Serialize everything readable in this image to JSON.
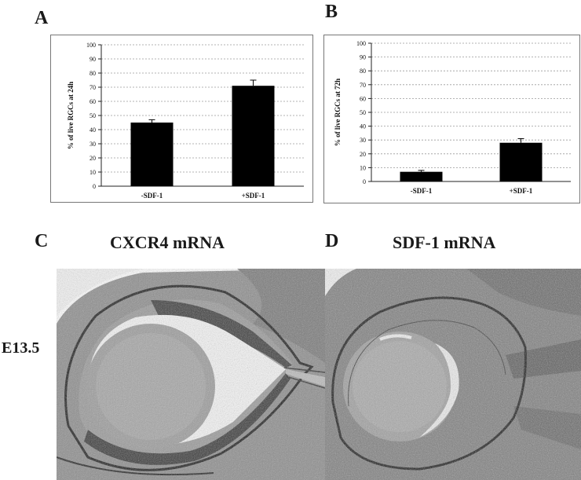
{
  "panels": {
    "a": "A",
    "b": "B",
    "c": "C",
    "d": "D"
  },
  "titles": {
    "c": "CXCR4 mRNA",
    "d": "SDF-1 mRNA"
  },
  "row_label": "E13.5",
  "chart_data": [
    {
      "type": "bar",
      "categories": [
        "-SDF-1",
        "+SDF-1"
      ],
      "values": [
        45,
        71
      ],
      "errors": [
        2,
        4
      ],
      "title": "",
      "xlabel": "",
      "ylabel": "% of live RGCs at 24h",
      "ylim": [
        0,
        100
      ],
      "yticks": [
        0,
        10,
        20,
        30,
        40,
        50,
        60,
        70,
        80,
        90,
        100
      ],
      "grid": true,
      "bar_color": "#000000"
    },
    {
      "type": "bar",
      "categories": [
        "-SDF-1",
        "+SDF-1"
      ],
      "values": [
        7,
        28
      ],
      "errors": [
        1,
        3
      ],
      "title": "",
      "xlabel": "",
      "ylabel": "% of live RGCs at 72h",
      "ylim": [
        0,
        100
      ],
      "yticks": [
        0,
        10,
        20,
        30,
        40,
        50,
        60,
        70,
        80,
        90,
        100
      ],
      "grid": true,
      "bar_color": "#000000"
    }
  ]
}
